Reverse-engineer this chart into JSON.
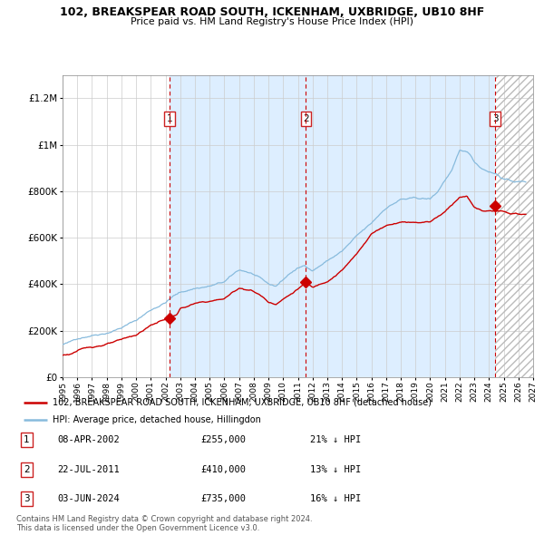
{
  "title": "102, BREAKSPEAR ROAD SOUTH, ICKENHAM, UXBRIDGE, UB10 8HF",
  "subtitle": "Price paid vs. HM Land Registry's House Price Index (HPI)",
  "legend_property": "102, BREAKSPEAR ROAD SOUTH, ICKENHAM, UXBRIDGE, UB10 8HF (detached house)",
  "legend_hpi": "HPI: Average price, detached house, Hillingdon",
  "transactions": [
    {
      "num": 1,
      "date": "08-APR-2002",
      "year": 2002.27,
      "price": 255000,
      "pct": "21% ↓ HPI"
    },
    {
      "num": 2,
      "date": "22-JUL-2011",
      "year": 2011.55,
      "price": 410000,
      "pct": "13% ↓ HPI"
    },
    {
      "num": 3,
      "date": "03-JUN-2024",
      "year": 2024.42,
      "price": 735000,
      "pct": "16% ↓ HPI"
    }
  ],
  "footer": "Contains HM Land Registry data © Crown copyright and database right 2024.\nThis data is licensed under the Open Government Licence v3.0.",
  "property_color": "#cc0000",
  "hpi_color": "#88bbdd",
  "shade_color": "#ddeeff",
  "marker_color": "#cc0000",
  "vline_color": "#cc0000",
  "grid_color": "#cccccc",
  "bg_color": "#ffffff",
  "ylim": [
    0,
    1300000
  ],
  "xmin": 1995.0,
  "xmax": 2027.0,
  "yticks": [
    0,
    200000,
    400000,
    600000,
    800000,
    1000000,
    1200000
  ],
  "ytick_labels": [
    "£0",
    "£200K",
    "£400K",
    "£600K",
    "£800K",
    "£1M",
    "£1.2M"
  ]
}
